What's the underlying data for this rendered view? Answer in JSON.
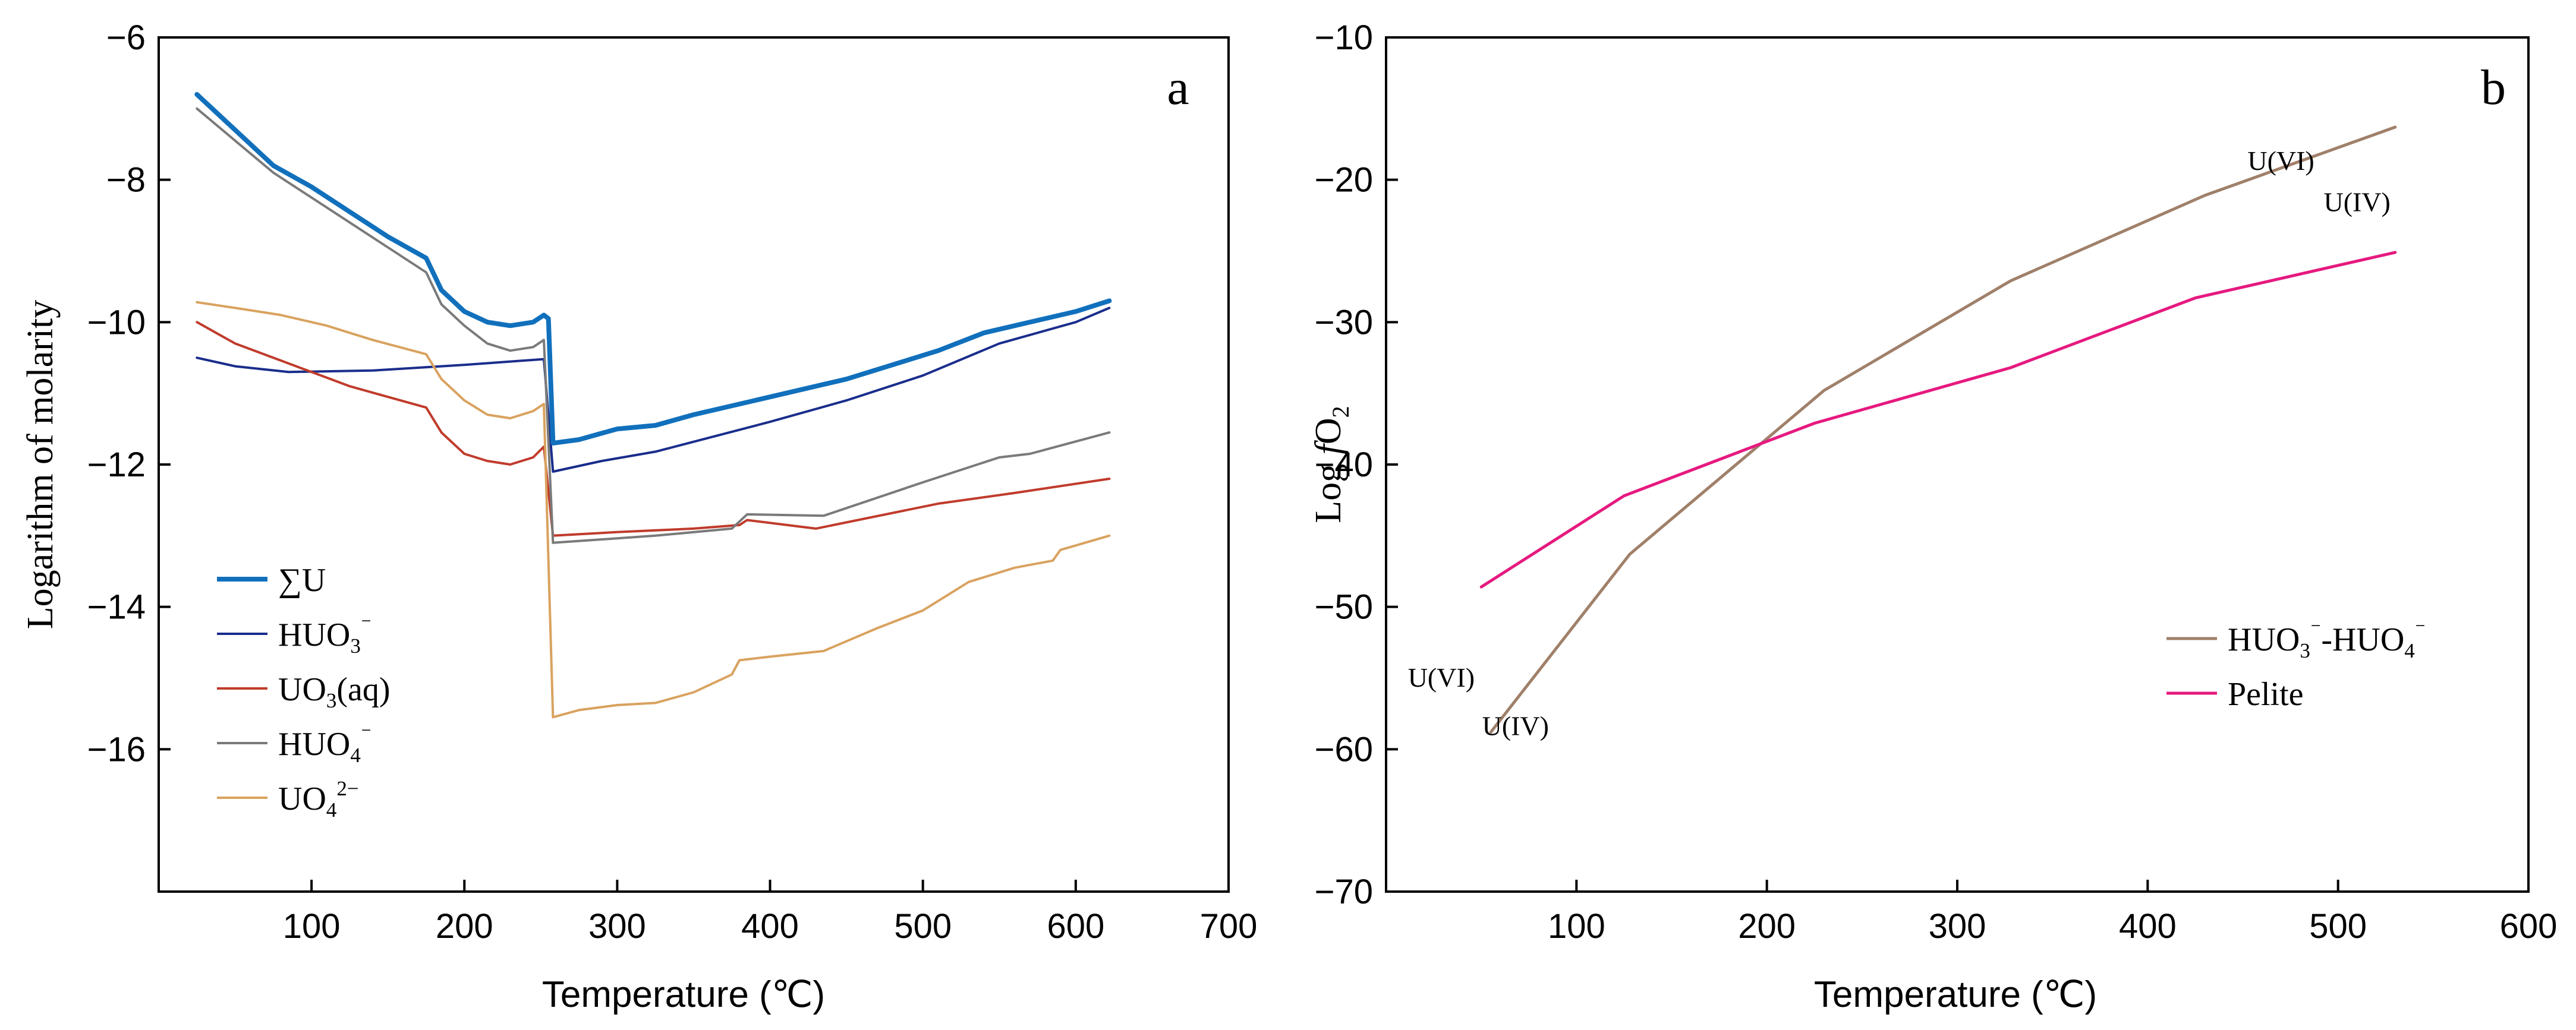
{
  "chart_data": [
    {
      "type": "line",
      "panel": "a",
      "xlabel": "Temperature (℃)",
      "ylabel": "Logarithm of molarity",
      "xlim": [
        0,
        700
      ],
      "ylim": [
        -18,
        -6
      ],
      "xticks": [
        100,
        200,
        300,
        400,
        500,
        600,
        700
      ],
      "yticks": [
        -6,
        -8,
        -10,
        -12,
        -14,
        -16
      ],
      "legend_position": "bottom-left",
      "series": [
        {
          "name": "∑U",
          "legend_base": "∑U",
          "legend_sub": "",
          "legend_sup": "",
          "color": "#1170bc",
          "width": 8,
          "points": [
            [
              25,
              -6.8
            ],
            [
              50,
              -7.3
            ],
            [
              75,
              -7.8
            ],
            [
              100,
              -8.1
            ],
            [
              125,
              -8.45
            ],
            [
              150,
              -8.8
            ],
            [
              175,
              -9.1
            ],
            [
              185,
              -9.55
            ],
            [
              200,
              -9.85
            ],
            [
              215,
              -10.0
            ],
            [
              230,
              -10.05
            ],
            [
              245,
              -10.0
            ],
            [
              252,
              -9.9
            ],
            [
              255,
              -9.95
            ],
            [
              258,
              -11.7
            ],
            [
              275,
              -11.65
            ],
            [
              300,
              -11.5
            ],
            [
              325,
              -11.45
            ],
            [
              350,
              -11.3
            ],
            [
              400,
              -11.05
            ],
            [
              450,
              -10.8
            ],
            [
              510,
              -10.4
            ],
            [
              540,
              -10.15
            ],
            [
              560,
              -10.05
            ],
            [
              600,
              -9.85
            ],
            [
              622,
              -9.7
            ]
          ]
        },
        {
          "name": "HUO3⁻",
          "legend_base": "HUO",
          "legend_sub": "3",
          "legend_sup": "⁻",
          "color": "#1a2d8c",
          "width": 4,
          "points": [
            [
              25,
              -10.5
            ],
            [
              50,
              -10.62
            ],
            [
              85,
              -10.7
            ],
            [
              140,
              -10.68
            ],
            [
              200,
              -10.6
            ],
            [
              252,
              -10.52
            ],
            [
              258,
              -12.1
            ],
            [
              290,
              -11.95
            ],
            [
              325,
              -11.82
            ],
            [
              400,
              -11.4
            ],
            [
              450,
              -11.1
            ],
            [
              500,
              -10.75
            ],
            [
              550,
              -10.3
            ],
            [
              600,
              -10.0
            ],
            [
              622,
              -9.8
            ]
          ]
        },
        {
          "name": "UO3(aq)",
          "legend_base": "UO",
          "legend_sub": "3",
          "legend_sup": "",
          "legend_tail": "(aq)",
          "color": "#c03b2b",
          "width": 4,
          "points": [
            [
              25,
              -10.0
            ],
            [
              50,
              -10.3
            ],
            [
              75,
              -10.5
            ],
            [
              100,
              -10.7
            ],
            [
              125,
              -10.9
            ],
            [
              150,
              -11.05
            ],
            [
              175,
              -11.2
            ],
            [
              185,
              -11.55
            ],
            [
              200,
              -11.85
            ],
            [
              215,
              -11.95
            ],
            [
              230,
              -12.0
            ],
            [
              245,
              -11.9
            ],
            [
              252,
              -11.75
            ],
            [
              258,
              -13.0
            ],
            [
              300,
              -12.95
            ],
            [
              350,
              -12.9
            ],
            [
              380,
              -12.85
            ],
            [
              385,
              -12.78
            ],
            [
              430,
              -12.9
            ],
            [
              510,
              -12.55
            ],
            [
              560,
              -12.4
            ],
            [
              622,
              -12.2
            ]
          ]
        },
        {
          "name": "HUO4⁻",
          "legend_base": "HUO",
          "legend_sub": "4",
          "legend_sup": "⁻",
          "color": "#7a7a7a",
          "width": 4,
          "points": [
            [
              25,
              -7.0
            ],
            [
              50,
              -7.45
            ],
            [
              75,
              -7.9
            ],
            [
              100,
              -8.25
            ],
            [
              125,
              -8.6
            ],
            [
              150,
              -8.95
            ],
            [
              175,
              -9.3
            ],
            [
              185,
              -9.75
            ],
            [
              200,
              -10.05
            ],
            [
              215,
              -10.3
            ],
            [
              230,
              -10.4
            ],
            [
              245,
              -10.35
            ],
            [
              252,
              -10.25
            ],
            [
              258,
              -13.1
            ],
            [
              325,
              -13.0
            ],
            [
              375,
              -12.9
            ],
            [
              385,
              -12.7
            ],
            [
              435,
              -12.72
            ],
            [
              500,
              -12.25
            ],
            [
              550,
              -11.9
            ],
            [
              570,
              -11.85
            ],
            [
              622,
              -11.55
            ]
          ]
        },
        {
          "name": "UO4²⁻",
          "legend_base": "UO",
          "legend_sub": "4",
          "legend_sup": "2−",
          "color": "#d9a25f",
          "width": 4,
          "points": [
            [
              25,
              -9.72
            ],
            [
              50,
              -9.8
            ],
            [
              80,
              -9.9
            ],
            [
              110,
              -10.05
            ],
            [
              140,
              -10.25
            ],
            [
              175,
              -10.45
            ],
            [
              185,
              -10.8
            ],
            [
              200,
              -11.1
            ],
            [
              215,
              -11.3
            ],
            [
              230,
              -11.35
            ],
            [
              245,
              -11.25
            ],
            [
              252,
              -11.15
            ],
            [
              258,
              -15.55
            ],
            [
              275,
              -15.45
            ],
            [
              300,
              -15.38
            ],
            [
              325,
              -15.35
            ],
            [
              350,
              -15.2
            ],
            [
              375,
              -14.95
            ],
            [
              380,
              -14.75
            ],
            [
              400,
              -14.7
            ],
            [
              435,
              -14.62
            ],
            [
              470,
              -14.3
            ],
            [
              500,
              -14.05
            ],
            [
              530,
              -13.65
            ],
            [
              560,
              -13.45
            ],
            [
              585,
              -13.35
            ],
            [
              590,
              -13.2
            ],
            [
              622,
              -13.0
            ]
          ]
        }
      ]
    },
    {
      "type": "line",
      "panel": "b",
      "xlabel": "Temperature (℃)",
      "ylabel": "Log fO2",
      "ylabel_parts": {
        "pre": "Log ",
        "ital": "f",
        "base": "O",
        "sub": "2"
      },
      "xlim": [
        0,
        600
      ],
      "ylim": [
        -70,
        -10
      ],
      "xticks": [
        100,
        200,
        300,
        400,
        500,
        600
      ],
      "yticks": [
        -10,
        -20,
        -30,
        -40,
        -50,
        -60,
        -70
      ],
      "legend_position": "middle-right",
      "series": [
        {
          "name": "HUO3⁻-HUO4⁻",
          "color": "#a0806a",
          "width": 5,
          "legend_parts": [
            [
              "HUO",
              ""
            ],
            [
              "3",
              "sub"
            ],
            [
              "⁻",
              "sup"
            ],
            [
              "-HUO",
              ""
            ],
            [
              "4",
              "sub"
            ],
            [
              "⁻",
              "sup"
            ]
          ],
          "points": [
            [
              55,
              -58.8
            ],
            [
              128,
              -46.3
            ],
            [
              230,
              -34.8
            ],
            [
              328,
              -27.1
            ],
            [
              430,
              -21.1
            ],
            [
              530,
              -16.3
            ]
          ]
        },
        {
          "name": "Pelite",
          "color": "#e6197f",
          "width": 5,
          "legend_parts": [
            [
              "Pelite",
              ""
            ]
          ],
          "points": [
            [
              50,
              -48.6
            ],
            [
              125,
              -42.2
            ],
            [
              225,
              -37.1
            ],
            [
              328,
              -33.2
            ],
            [
              425,
              -28.3
            ],
            [
              530,
              -25.1
            ]
          ]
        }
      ],
      "annotations": [
        {
          "text": "U(VI)",
          "x": 470,
          "y": -19.3
        },
        {
          "text": "U(IV)",
          "x": 510,
          "y": -22.2
        },
        {
          "text": "U(VI)",
          "x": 29,
          "y": -55.6
        },
        {
          "text": "U(IV)",
          "x": 68,
          "y": -59.0
        }
      ]
    }
  ]
}
